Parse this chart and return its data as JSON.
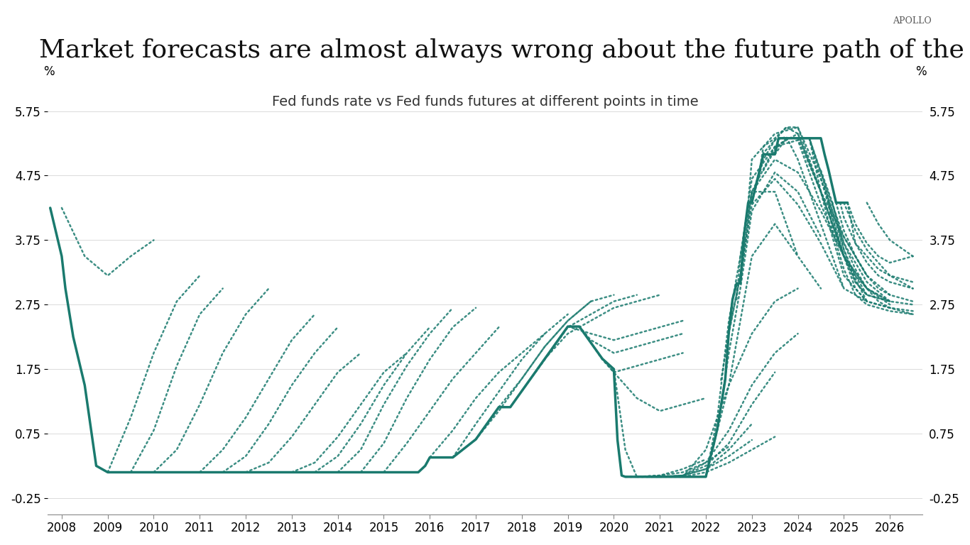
{
  "title": "Market forecasts are almost always wrong about the future path of the Fed funds rate",
  "subtitle": "Fed funds rate vs Fed funds futures at different points in time",
  "branding": "APOLLO",
  "ylabel_left": "%",
  "ylabel_right": "%",
  "yticks": [
    -0.25,
    0.75,
    1.75,
    2.75,
    3.75,
    4.75,
    5.75
  ],
  "ylim": [
    -0.5,
    6.2
  ],
  "xlim_start": 2007.7,
  "xlim_end": 2026.7,
  "xticks": [
    2008,
    2009,
    2010,
    2011,
    2012,
    2013,
    2014,
    2015,
    2016,
    2017,
    2018,
    2019,
    2020,
    2021,
    2022,
    2023,
    2024,
    2025,
    2026
  ],
  "main_color": "#1a7a6e",
  "background_color": "#ffffff",
  "title_fontsize": 26,
  "subtitle_fontsize": 14,
  "tick_fontsize": 12,
  "branding_fontsize": 9,
  "actual_rate": {
    "x": [
      2007.75,
      2008.0,
      2008.08,
      2008.25,
      2008.5,
      2008.75,
      2009.0,
      2009.25,
      2009.5,
      2009.75,
      2010.0,
      2010.5,
      2011.0,
      2011.5,
      2012.0,
      2012.5,
      2013.0,
      2013.5,
      2014.0,
      2014.5,
      2015.0,
      2015.5,
      2015.75,
      2015.9,
      2016.0,
      2016.5,
      2017.0,
      2017.25,
      2017.5,
      2017.75,
      2018.0,
      2018.25,
      2018.5,
      2018.75,
      2019.0,
      2019.25,
      2019.5,
      2019.75,
      2020.0,
      2020.08,
      2020.17,
      2020.25,
      2020.5,
      2020.75,
      2021.0,
      2021.5,
      2022.0,
      2022.08,
      2022.17,
      2022.25,
      2022.42,
      2022.5,
      2022.58,
      2022.67,
      2022.75,
      2022.83,
      2022.92,
      2023.0,
      2023.08,
      2023.17,
      2023.25,
      2023.42,
      2023.5,
      2023.58,
      2023.67,
      2023.75,
      2024.0,
      2024.25,
      2024.5,
      2024.58,
      2024.67,
      2024.75,
      2024.83,
      2024.92,
      2025.0,
      2025.08
    ],
    "y": [
      4.25,
      3.5,
      3.0,
      2.25,
      1.5,
      0.25,
      0.15,
      0.15,
      0.15,
      0.15,
      0.15,
      0.15,
      0.15,
      0.15,
      0.15,
      0.15,
      0.15,
      0.15,
      0.15,
      0.15,
      0.15,
      0.15,
      0.15,
      0.25,
      0.38,
      0.38,
      0.66,
      0.91,
      1.16,
      1.16,
      1.41,
      1.66,
      1.91,
      2.16,
      2.41,
      2.41,
      2.16,
      1.91,
      1.75,
      0.65,
      0.1,
      0.08,
      0.08,
      0.08,
      0.08,
      0.08,
      0.08,
      0.33,
      0.58,
      0.83,
      1.58,
      2.33,
      2.83,
      3.08,
      3.08,
      3.83,
      4.33,
      4.33,
      4.58,
      4.83,
      5.08,
      5.08,
      5.08,
      5.33,
      5.33,
      5.33,
      5.33,
      5.33,
      5.33,
      5.08,
      4.83,
      4.58,
      4.33,
      4.33,
      4.33,
      4.33
    ]
  },
  "forecast_curves": [
    {
      "start_year": 2008.0,
      "points_x": [
        2008.0,
        2008.5,
        2009.0,
        2009.5,
        2010.0
      ],
      "points_y": [
        4.25,
        3.5,
        3.2,
        3.5,
        3.75
      ]
    },
    {
      "start_year": 2009.0,
      "points_x": [
        2009.0,
        2009.5,
        2010.0,
        2010.5,
        2011.0
      ],
      "points_y": [
        0.15,
        1.0,
        2.0,
        2.8,
        3.2
      ]
    },
    {
      "start_year": 2009.5,
      "points_x": [
        2009.5,
        2010.0,
        2010.5,
        2011.0,
        2011.5
      ],
      "points_y": [
        0.15,
        0.8,
        1.8,
        2.6,
        3.0
      ]
    },
    {
      "start_year": 2010.0,
      "points_x": [
        2010.0,
        2010.5,
        2011.0,
        2011.5,
        2012.0,
        2012.5
      ],
      "points_y": [
        0.15,
        0.5,
        1.2,
        2.0,
        2.6,
        3.0
      ]
    },
    {
      "start_year": 2011.0,
      "points_x": [
        2011.0,
        2011.5,
        2012.0,
        2012.5,
        2013.0,
        2013.5
      ],
      "points_y": [
        0.15,
        0.5,
        1.0,
        1.6,
        2.2,
        2.6
      ]
    },
    {
      "start_year": 2011.5,
      "points_x": [
        2011.5,
        2012.0,
        2012.5,
        2013.0,
        2013.5,
        2014.0
      ],
      "points_y": [
        0.15,
        0.4,
        0.9,
        1.5,
        2.0,
        2.4
      ]
    },
    {
      "start_year": 2012.0,
      "points_x": [
        2012.0,
        2012.5,
        2013.0,
        2013.5,
        2014.0,
        2014.5
      ],
      "points_y": [
        0.15,
        0.3,
        0.7,
        1.2,
        1.7,
        2.0
      ]
    },
    {
      "start_year": 2013.0,
      "points_x": [
        2013.0,
        2013.5,
        2014.0,
        2014.5,
        2015.0,
        2015.5
      ],
      "points_y": [
        0.15,
        0.3,
        0.7,
        1.2,
        1.7,
        2.0
      ]
    },
    {
      "start_year": 2013.5,
      "points_x": [
        2013.5,
        2014.0,
        2014.5,
        2015.0,
        2015.5,
        2016.0
      ],
      "points_y": [
        0.15,
        0.4,
        0.9,
        1.5,
        2.0,
        2.4
      ]
    },
    {
      "start_year": 2014.0,
      "points_x": [
        2014.0,
        2014.5,
        2015.0,
        2015.5,
        2016.0,
        2016.5
      ],
      "points_y": [
        0.15,
        0.5,
        1.2,
        1.8,
        2.3,
        2.7
      ]
    },
    {
      "start_year": 2014.5,
      "points_x": [
        2014.5,
        2015.0,
        2015.5,
        2016.0,
        2016.5,
        2017.0
      ],
      "points_y": [
        0.15,
        0.6,
        1.3,
        1.9,
        2.4,
        2.7
      ]
    },
    {
      "start_year": 2015.0,
      "points_x": [
        2015.0,
        2015.5,
        2016.0,
        2016.5,
        2017.0,
        2017.5
      ],
      "points_y": [
        0.15,
        0.6,
        1.1,
        1.6,
        2.0,
        2.4
      ]
    },
    {
      "start_year": 2016.0,
      "points_x": [
        2016.0,
        2016.5,
        2017.0,
        2017.5,
        2018.0,
        2018.5
      ],
      "points_y": [
        0.38,
        0.8,
        1.3,
        1.7,
        2.0,
        2.3
      ]
    },
    {
      "start_year": 2016.5,
      "points_x": [
        2016.5,
        2017.0,
        2017.5,
        2018.0,
        2018.5,
        2019.0
      ],
      "points_y": [
        0.38,
        0.9,
        1.4,
        1.9,
        2.3,
        2.6
      ]
    },
    {
      "start_year": 2017.0,
      "points_x": [
        2017.0,
        2017.5,
        2018.0,
        2018.5,
        2019.0,
        2019.5
      ],
      "points_y": [
        0.66,
        1.1,
        1.6,
        2.1,
        2.5,
        2.8
      ]
    },
    {
      "start_year": 2017.5,
      "points_x": [
        2017.5,
        2018.0,
        2018.5,
        2019.0,
        2019.5,
        2020.0
      ],
      "points_y": [
        1.16,
        1.6,
        2.1,
        2.5,
        2.8,
        2.9
      ]
    },
    {
      "start_year": 2018.0,
      "points_x": [
        2018.0,
        2018.5,
        2019.0,
        2019.5,
        2020.0,
        2020.5
      ],
      "points_y": [
        1.41,
        1.9,
        2.4,
        2.6,
        2.8,
        2.9
      ]
    },
    {
      "start_year": 2018.5,
      "points_x": [
        2018.5,
        2019.0,
        2019.5,
        2020.0,
        2020.5,
        2021.0
      ],
      "points_y": [
        1.91,
        2.3,
        2.5,
        2.7,
        2.8,
        2.9
      ]
    },
    {
      "start_year": 2019.0,
      "points_x": [
        2019.0,
        2019.5,
        2020.0,
        2020.5,
        2021.0,
        2021.5
      ],
      "points_y": [
        2.41,
        2.3,
        2.2,
        2.3,
        2.4,
        2.5
      ]
    },
    {
      "start_year": 2019.25,
      "points_x": [
        2019.25,
        2019.5,
        2020.0,
        2020.5,
        2021.0,
        2021.5
      ],
      "points_y": [
        2.41,
        2.2,
        2.0,
        2.1,
        2.2,
        2.3
      ]
    },
    {
      "start_year": 2019.5,
      "points_x": [
        2019.5,
        2019.75,
        2020.0,
        2020.5,
        2021.0,
        2021.5
      ],
      "points_y": [
        2.16,
        1.9,
        1.7,
        1.8,
        1.9,
        2.0
      ]
    },
    {
      "start_year": 2019.75,
      "points_x": [
        2019.75,
        2020.0,
        2020.5,
        2021.0,
        2021.5,
        2022.0
      ],
      "points_y": [
        1.91,
        1.7,
        1.3,
        1.1,
        1.2,
        1.3
      ]
    },
    {
      "start_year": 2020.0,
      "points_x": [
        2020.0,
        2020.25,
        2020.5,
        2021.0,
        2021.5,
        2022.0
      ],
      "points_y": [
        1.75,
        0.5,
        0.08,
        0.1,
        0.2,
        0.35
      ]
    },
    {
      "start_year": 2020.25,
      "points_x": [
        2020.25,
        2020.5,
        2021.0,
        2021.5,
        2022.0,
        2022.5
      ],
      "points_y": [
        0.08,
        0.08,
        0.1,
        0.15,
        0.3,
        0.55
      ]
    },
    {
      "start_year": 2020.5,
      "points_x": [
        2020.5,
        2021.0,
        2021.5,
        2022.0,
        2022.5,
        2023.0
      ],
      "points_y": [
        0.08,
        0.08,
        0.1,
        0.2,
        0.5,
        0.9
      ]
    },
    {
      "start_year": 2021.0,
      "points_x": [
        2021.0,
        2021.5,
        2022.0,
        2022.5,
        2023.0,
        2023.5
      ],
      "points_y": [
        0.08,
        0.1,
        0.25,
        0.6,
        1.2,
        1.7
      ]
    },
    {
      "start_year": 2021.5,
      "points_x": [
        2021.5,
        2022.0,
        2022.5,
        2023.0,
        2023.5,
        2024.0
      ],
      "points_y": [
        0.08,
        0.5,
        1.5,
        2.3,
        2.8,
        3.0
      ]
    },
    {
      "start_year": 2022.0,
      "points_x": [
        2022.0,
        2022.25,
        2022.5,
        2022.75,
        2023.0,
        2023.5,
        2024.0
      ],
      "points_y": [
        0.08,
        1.0,
        2.5,
        3.5,
        4.5,
        4.5,
        3.5
      ]
    },
    {
      "start_year": 2022.25,
      "points_x": [
        2022.25,
        2022.5,
        2022.75,
        2023.0,
        2023.5,
        2024.0,
        2024.5
      ],
      "points_y": [
        0.83,
        2.0,
        3.0,
        4.2,
        4.8,
        4.5,
        3.8
      ]
    },
    {
      "start_year": 2022.5,
      "points_x": [
        2022.5,
        2022.75,
        2023.0,
        2023.5,
        2024.0,
        2024.5,
        2025.0
      ],
      "points_y": [
        2.33,
        3.2,
        4.5,
        5.0,
        4.8,
        4.2,
        3.5
      ]
    },
    {
      "start_year": 2022.75,
      "points_x": [
        2022.75,
        2023.0,
        2023.5,
        2024.0,
        2024.5,
        2025.0,
        2025.5
      ],
      "points_y": [
        3.08,
        4.5,
        5.2,
        5.4,
        4.5,
        3.8,
        3.2
      ]
    },
    {
      "start_year": 2023.0,
      "points_x": [
        2023.0,
        2023.25,
        2023.5,
        2023.75,
        2024.0,
        2024.5,
        2025.0,
        2025.5
      ],
      "points_y": [
        4.33,
        5.0,
        5.3,
        5.35,
        5.0,
        4.0,
        3.0,
        2.8
      ]
    },
    {
      "start_year": 2023.25,
      "points_x": [
        2023.25,
        2023.5,
        2023.75,
        2024.0,
        2024.5,
        2025.0,
        2025.5,
        2026.0
      ],
      "points_y": [
        4.83,
        5.15,
        5.33,
        5.33,
        4.5,
        3.5,
        3.0,
        2.75
      ]
    },
    {
      "start_year": 2023.5,
      "points_x": [
        2023.5,
        2023.75,
        2024.0,
        2024.25,
        2024.5,
        2025.0,
        2025.5,
        2026.0
      ],
      "points_y": [
        5.08,
        5.33,
        5.33,
        5.33,
        4.8,
        3.8,
        3.2,
        2.9
      ]
    },
    {
      "start_year": 2023.75,
      "points_x": [
        2023.75,
        2024.0,
        2024.25,
        2024.5,
        2024.75,
        2025.0,
        2025.5,
        2026.0
      ],
      "points_y": [
        5.33,
        5.33,
        5.33,
        4.5,
        3.8,
        3.2,
        2.8,
        2.7
      ]
    },
    {
      "start_year": 2024.0,
      "points_x": [
        2024.0,
        2024.25,
        2024.5,
        2024.75,
        2025.0,
        2025.25,
        2025.5,
        2025.75,
        2026.0
      ],
      "points_y": [
        5.33,
        5.33,
        4.8,
        4.2,
        3.6,
        3.2,
        3.0,
        2.9,
        2.8
      ]
    },
    {
      "start_year": 2024.25,
      "points_x": [
        2024.25,
        2024.5,
        2024.75,
        2025.0,
        2025.25,
        2025.5,
        2025.75,
        2026.0
      ],
      "points_y": [
        5.33,
        4.7,
        4.1,
        3.5,
        3.1,
        2.9,
        2.85,
        2.8
      ]
    },
    {
      "start_year": 2024.5,
      "points_x": [
        2024.5,
        2024.75,
        2025.0,
        2025.25,
        2025.5,
        2025.75,
        2026.0,
        2026.5
      ],
      "points_y": [
        4.83,
        4.33,
        3.6,
        3.1,
        2.9,
        2.85,
        2.8,
        2.75
      ]
    },
    {
      "start_year": 2024.58,
      "points_x": [
        2024.58,
        2024.75,
        2025.0,
        2025.25,
        2025.5,
        2025.75,
        2026.0,
        2026.5
      ],
      "points_y": [
        4.58,
        4.1,
        3.5,
        3.0,
        2.8,
        2.75,
        2.7,
        2.65
      ]
    },
    {
      "start_year": 2024.67,
      "points_x": [
        2024.67,
        2024.75,
        2025.0,
        2025.25,
        2025.5,
        2025.75,
        2026.0,
        2026.5
      ],
      "points_y": [
        4.33,
        3.9,
        3.3,
        2.9,
        2.75,
        2.7,
        2.65,
        2.6
      ]
    },
    {
      "start_year": 2024.75,
      "points_x": [
        2024.75,
        2025.0,
        2025.25,
        2025.5,
        2025.75,
        2026.0,
        2026.5
      ],
      "points_y": [
        4.33,
        3.7,
        3.3,
        3.0,
        2.8,
        2.7,
        2.6
      ]
    },
    {
      "start_year": 2024.83,
      "points_x": [
        2024.83,
        2025.0,
        2025.25,
        2025.5,
        2025.75,
        2026.0,
        2026.5
      ],
      "points_y": [
        4.33,
        3.9,
        3.5,
        3.2,
        3.0,
        2.9,
        2.8
      ]
    },
    {
      "start_year": 2025.0,
      "points_x": [
        2025.0,
        2025.25,
        2025.5,
        2025.75,
        2026.0,
        2026.5
      ],
      "points_y": [
        4.33,
        3.9,
        3.6,
        3.4,
        3.2,
        3.0
      ]
    },
    {
      "start_year": 2025.08,
      "points_x": [
        2025.08,
        2025.25,
        2025.5,
        2025.75,
        2026.0,
        2026.5
      ],
      "points_y": [
        4.33,
        4.0,
        3.7,
        3.5,
        3.4,
        3.5
      ]
    },
    {
      "start_year": 2020.5,
      "points_x": [
        2020.5,
        2021.0,
        2021.5,
        2022.0,
        2022.5,
        2023.0,
        2023.5
      ],
      "points_y": [
        0.08,
        0.08,
        0.08,
        0.15,
        0.3,
        0.5,
        0.7
      ]
    },
    {
      "start_year": 2021.25,
      "points_x": [
        2021.25,
        2021.5,
        2022.0,
        2022.5,
        2023.0,
        2023.5,
        2024.0
      ],
      "points_y": [
        0.08,
        0.1,
        0.3,
        0.8,
        1.5,
        2.0,
        2.3
      ]
    },
    {
      "start_year": 2022.17,
      "points_x": [
        2022.17,
        2022.5,
        2022.75,
        2023.0,
        2023.5,
        2024.0,
        2024.5
      ],
      "points_y": [
        0.58,
        1.5,
        2.5,
        3.5,
        4.0,
        3.5,
        3.0
      ]
    },
    {
      "start_year": 2022.92,
      "points_x": [
        2022.92,
        2023.0,
        2023.5,
        2024.0,
        2024.5,
        2025.0,
        2025.5
      ],
      "points_y": [
        4.33,
        5.0,
        5.4,
        5.5,
        4.5,
        3.5,
        2.8
      ]
    },
    {
      "start_year": 2025.5,
      "points_x": [
        2025.5,
        2025.75,
        2026.0,
        2026.5
      ],
      "points_y": [
        4.33,
        4.0,
        3.75,
        3.5
      ]
    },
    {
      "start_year": 2025.08,
      "points_x": [
        2025.08,
        2025.25,
        2025.5,
        2025.75,
        2026.0,
        2026.5
      ],
      "points_y": [
        4.33,
        3.7,
        3.4,
        3.2,
        3.1,
        3.0
      ]
    },
    {
      "start_year": 2024.92,
      "points_x": [
        2024.92,
        2025.0,
        2025.25,
        2025.5,
        2025.75,
        2026.0,
        2026.5
      ],
      "points_y": [
        4.33,
        4.1,
        3.7,
        3.5,
        3.3,
        3.2,
        3.1
      ]
    },
    {
      "start_year": 2020.75,
      "points_x": [
        2020.75,
        2021.0,
        2021.5,
        2022.0,
        2022.5,
        2023.0
      ],
      "points_y": [
        0.08,
        0.08,
        0.1,
        0.2,
        0.4,
        0.65
      ]
    },
    {
      "start_year": 2022.33,
      "points_x": [
        2022.33,
        2022.5,
        2022.75,
        2023.0,
        2023.5,
        2024.0,
        2024.5,
        2025.0
      ],
      "points_y": [
        1.58,
        2.3,
        3.2,
        4.3,
        4.7,
        4.3,
        3.7,
        3.0
      ]
    },
    {
      "start_year": 2022.67,
      "points_x": [
        2022.67,
        2022.75,
        2023.0,
        2023.5,
        2024.0,
        2024.5,
        2025.0,
        2025.5
      ],
      "points_y": [
        2.83,
        3.5,
        4.7,
        5.2,
        5.3,
        4.3,
        3.5,
        2.9
      ]
    },
    {
      "start_year": 2023.08,
      "points_x": [
        2023.08,
        2023.25,
        2023.5,
        2023.75,
        2024.0,
        2024.5,
        2025.0,
        2025.5,
        2026.0
      ],
      "points_y": [
        4.58,
        5.1,
        5.3,
        5.5,
        5.4,
        4.5,
        3.5,
        3.0,
        2.8
      ]
    },
    {
      "start_year": 2023.17,
      "points_x": [
        2023.17,
        2023.25,
        2023.5,
        2023.75,
        2024.0,
        2024.5,
        2025.0,
        2025.5,
        2026.0
      ],
      "points_y": [
        4.83,
        5.2,
        5.33,
        5.5,
        5.5,
        4.7,
        3.7,
        3.1,
        2.8
      ]
    }
  ]
}
